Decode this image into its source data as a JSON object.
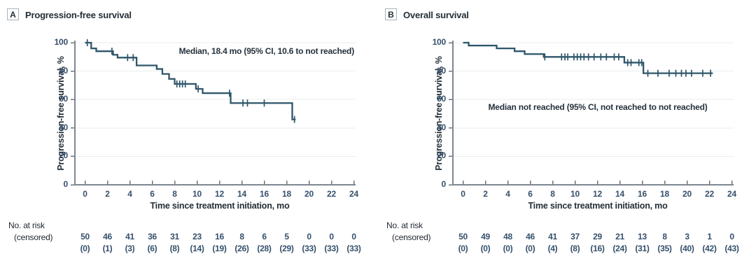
{
  "figure": {
    "x_axis_label": "Time since treatment initiation, mo",
    "y_axis_label": "Progression-free survival, %",
    "no_at_risk_label": "No. at risk",
    "censored_label": "(censored)",
    "x_ticks": [
      0,
      2,
      4,
      6,
      8,
      10,
      12,
      14,
      16,
      18,
      20,
      22,
      24
    ],
    "y_ticks": [
      0,
      20,
      40,
      60,
      80,
      100
    ]
  },
  "colors": {
    "curve": "#2e566a",
    "axis": "#7e8790",
    "grid": "#e9edef",
    "tick_mark": "#6b7680",
    "tick_text": "#35506b",
    "dark_text": "#232f38"
  },
  "chart_data": [
    {
      "type": "line",
      "subtype": "kaplan-meier-step",
      "panel_label": "A",
      "title": "Progression-free survival",
      "annotation": "Median, 18.4 mo (95% CI, 10.6 to not reached)",
      "xlabel": "Time since treatment initiation, mo",
      "ylabel": "Progression-free survival, %",
      "xlim": [
        0,
        24
      ],
      "ylim": [
        0,
        100
      ],
      "grid": "horizontal",
      "steps": [
        [
          0,
          100
        ],
        [
          0.55,
          96
        ],
        [
          1.0,
          94
        ],
        [
          2.5,
          91.5
        ],
        [
          2.9,
          89.5
        ],
        [
          4.6,
          84
        ],
        [
          6.4,
          81.5
        ],
        [
          6.9,
          78
        ],
        [
          7.5,
          74.5
        ],
        [
          8.0,
          71
        ],
        [
          9.9,
          67.5
        ],
        [
          10.5,
          64.5
        ],
        [
          13.0,
          57.5
        ],
        [
          18.5,
          46
        ]
      ],
      "curve_end_time": 18.8,
      "censor_marks": [
        [
          0.2,
          100
        ],
        [
          2.4,
          94
        ],
        [
          3.8,
          89.5
        ],
        [
          4.3,
          89.5
        ],
        [
          8.2,
          71
        ],
        [
          8.45,
          71
        ],
        [
          8.7,
          71
        ],
        [
          8.95,
          71
        ],
        [
          10.1,
          67.5
        ],
        [
          12.9,
          64.5
        ],
        [
          14.1,
          57.5
        ],
        [
          14.5,
          57.5
        ],
        [
          16.0,
          57.5
        ],
        [
          18.7,
          46
        ]
      ],
      "at_risk_times": [
        0,
        2,
        4,
        6,
        8,
        10,
        12,
        14,
        16,
        18,
        20,
        22,
        24
      ],
      "at_risk": [
        50,
        46,
        41,
        36,
        31,
        23,
        16,
        8,
        6,
        5,
        0,
        0,
        0
      ],
      "censored_counts": [
        0,
        1,
        3,
        6,
        8,
        14,
        19,
        26,
        28,
        29,
        33,
        33,
        33
      ]
    },
    {
      "type": "line",
      "subtype": "kaplan-meier-step",
      "panel_label": "B",
      "title": "Overall survival",
      "annotation": "Median not reached (95% CI, not reached to not reached)",
      "xlabel": "Time since treatment initiation, mo",
      "ylabel": "Progression-free survival, %",
      "xlim": [
        0,
        24
      ],
      "ylim": [
        0,
        100
      ],
      "grid": "horizontal",
      "steps": [
        [
          0,
          100
        ],
        [
          0.5,
          98
        ],
        [
          3.0,
          96
        ],
        [
          4.6,
          94
        ],
        [
          5.5,
          92
        ],
        [
          7.2,
          90
        ],
        [
          14.4,
          86
        ],
        [
          16.1,
          78.5
        ]
      ],
      "curve_end_time": 22.3,
      "censor_marks": [
        [
          7.3,
          90
        ],
        [
          8.8,
          90
        ],
        [
          9.1,
          90
        ],
        [
          9.35,
          90
        ],
        [
          9.9,
          90
        ],
        [
          10.2,
          90
        ],
        [
          10.5,
          90
        ],
        [
          10.8,
          90
        ],
        [
          11.2,
          90
        ],
        [
          11.7,
          90
        ],
        [
          12.3,
          90
        ],
        [
          12.8,
          90
        ],
        [
          13.5,
          90
        ],
        [
          13.9,
          90
        ],
        [
          14.7,
          86
        ],
        [
          15.0,
          86
        ],
        [
          15.7,
          86
        ],
        [
          15.95,
          86
        ],
        [
          16.5,
          78.5
        ],
        [
          17.4,
          78.5
        ],
        [
          18.4,
          78.5
        ],
        [
          19.0,
          78.5
        ],
        [
          19.5,
          78.5
        ],
        [
          19.9,
          78.5
        ],
        [
          20.4,
          78.5
        ],
        [
          21.4,
          78.5
        ],
        [
          22.1,
          78.5
        ]
      ],
      "at_risk_times": [
        0,
        2,
        4,
        6,
        8,
        10,
        12,
        14,
        16,
        18,
        20,
        22,
        24
      ],
      "at_risk": [
        50,
        49,
        48,
        46,
        41,
        37,
        29,
        21,
        13,
        8,
        3,
        1,
        0
      ],
      "censored_counts": [
        0,
        0,
        0,
        0,
        4,
        8,
        16,
        24,
        31,
        35,
        40,
        42,
        43
      ]
    }
  ]
}
